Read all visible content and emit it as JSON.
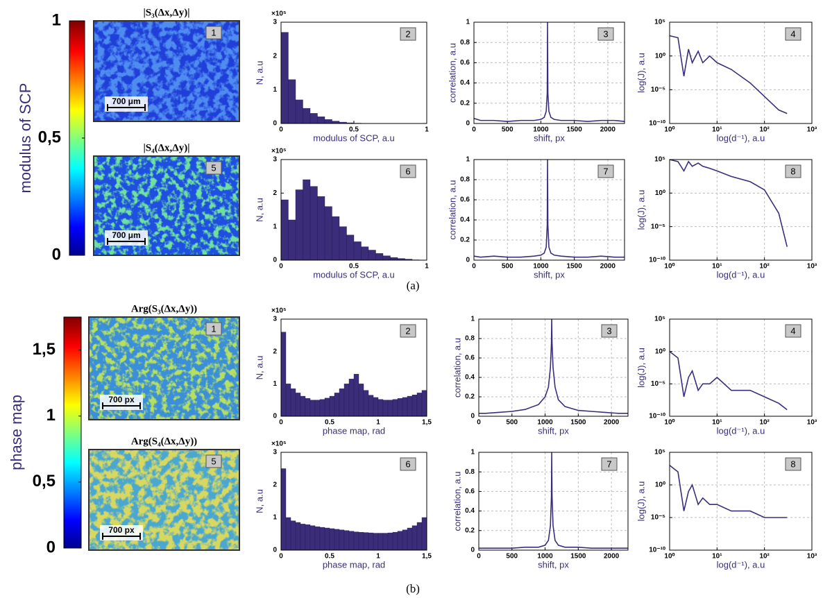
{
  "chart_data": [
    {
      "type": "colorbar",
      "label": "modulus of SCP",
      "colormap": "jet",
      "ylim": [
        0,
        1
      ],
      "yticks": [
        0,
        {
          "value": 0.5,
          "label": "0,5"
        },
        1
      ]
    },
    {
      "type": "image",
      "title": "|S₃(Δx,Δy)|",
      "label": "1",
      "scale_bar": "700 μm",
      "color": "#1f3fd8",
      "speckle_color": "#4f8cf0"
    },
    {
      "type": "image",
      "title": "|S₄(Δx,Δy)|",
      "label": "5",
      "scale_bar": "700 μm",
      "color": "#1e4fe0",
      "speckle_color": "#6fe0a0"
    },
    {
      "type": "histogram",
      "label": "2",
      "xlabel": "modulus of SCP, a.u",
      "ylabel": "N, a.u",
      "multiplier": "×10⁵",
      "color": "#3b2d7a",
      "bins": [
        0,
        0.05,
        0.1,
        0.15,
        0.2,
        0.25,
        0.3,
        0.35,
        0.4,
        0.45,
        0.5,
        0.55,
        0.6,
        0.65,
        0.7,
        0.75,
        0.8,
        0.85,
        0.9,
        0.95,
        1
      ],
      "values": [
        2.7,
        1.3,
        0.7,
        0.45,
        0.3,
        0.2,
        0.12,
        0.07,
        0.04,
        0.02,
        0.01,
        0.005,
        0,
        0,
        0,
        0,
        0,
        0,
        0,
        0
      ],
      "xlim": [
        0,
        1
      ],
      "ylim": [
        0,
        3
      ],
      "xticks": [
        0,
        0.5,
        1
      ],
      "yticks": [
        0,
        1,
        2,
        3
      ],
      "grid": false
    },
    {
      "type": "line",
      "label": "3",
      "xlabel": "shift, px",
      "ylabel": "correlation, a.u",
      "color": "#3b2d7a",
      "x": [
        0,
        100,
        300,
        500,
        700,
        900,
        1000,
        1050,
        1080,
        1095,
        1100,
        1105,
        1120,
        1150,
        1200,
        1300,
        1500,
        1700,
        1900,
        2100,
        2250
      ],
      "values": [
        0.05,
        0.03,
        0.03,
        0.02,
        0.03,
        0.03,
        0.04,
        0.06,
        0.12,
        0.3,
        1,
        0.3,
        0.12,
        0.06,
        0.04,
        0.03,
        0.03,
        0.02,
        0.03,
        0.03,
        0.02
      ],
      "xlim": [
        0,
        2250
      ],
      "ylim": [
        0,
        1
      ],
      "xticks": [
        0,
        500,
        1000,
        1500,
        2000
      ],
      "yticks": [
        0,
        0.2,
        0.4,
        0.6,
        0.8,
        1
      ],
      "grid": true
    },
    {
      "type": "line",
      "log": true,
      "label": "4",
      "xlabel": "log(d⁻¹), a.u",
      "ylabel": "log(J), a.u",
      "color": "#3b2d7a",
      "x": [
        1,
        1.5,
        2,
        2.5,
        3,
        4,
        5,
        7,
        10,
        20,
        50,
        100,
        200,
        300
      ],
      "values": [
        1000,
        500,
        0.001,
        10,
        0.1,
        5,
        0.1,
        1,
        0.1,
        0.01,
        0.0001,
        1e-06,
        1e-08,
        3e-09
      ],
      "xlim": [
        1,
        1000
      ],
      "ylim": [
        1e-10,
        100000
      ],
      "xticks": [
        {
          "value": 1,
          "label": "10⁰"
        },
        {
          "value": 10,
          "label": "10¹"
        },
        {
          "value": 100,
          "label": "10²"
        },
        {
          "value": 1000,
          "label": "10³"
        }
      ],
      "yticks": [
        {
          "value": 1e-10,
          "label": "10⁻¹⁰"
        },
        {
          "value": 1e-05,
          "label": "10⁻⁵"
        },
        {
          "value": 1,
          "label": "10⁰"
        },
        {
          "value": 100000,
          "label": "10⁵"
        }
      ],
      "grid": true
    },
    {
      "type": "histogram",
      "label": "6",
      "xlabel": "modulus of SCP, a.u",
      "ylabel": "N, a.u",
      "multiplier": "×10⁵",
      "color": "#3b2d7a",
      "bins": [
        0,
        0.05,
        0.1,
        0.15,
        0.2,
        0.25,
        0.3,
        0.35,
        0.4,
        0.45,
        0.5,
        0.55,
        0.6,
        0.65,
        0.7,
        0.75,
        0.8,
        0.85,
        0.9,
        0.95,
        1
      ],
      "values": [
        1.8,
        1.2,
        2.1,
        2.4,
        2.2,
        1.9,
        1.6,
        1.3,
        1.0,
        0.75,
        0.55,
        0.4,
        0.3,
        0.2,
        0.13,
        0.08,
        0.05,
        0.03,
        0.01,
        0.005
      ],
      "xlim": [
        0,
        1
      ],
      "ylim": [
        0,
        3
      ],
      "xticks": [
        0,
        0.5,
        1
      ],
      "yticks": [
        0,
        1,
        2,
        3
      ],
      "grid": false
    },
    {
      "type": "line",
      "label": "7",
      "xlabel": "shift, px",
      "ylabel": "correlation, a.u",
      "color": "#3b2d7a",
      "x": [
        0,
        100,
        300,
        500,
        700,
        900,
        1000,
        1050,
        1080,
        1095,
        1100,
        1105,
        1120,
        1150,
        1200,
        1300,
        1500,
        1700,
        1900,
        2100,
        2250
      ],
      "values": [
        0.04,
        0.03,
        0.04,
        0.03,
        0.03,
        0.04,
        0.05,
        0.07,
        0.13,
        0.35,
        1,
        0.35,
        0.13,
        0.07,
        0.05,
        0.04,
        0.03,
        0.03,
        0.04,
        0.03,
        0.03
      ],
      "xlim": [
        0,
        2250
      ],
      "ylim": [
        0,
        1
      ],
      "xticks": [
        0,
        500,
        1000,
        1500,
        2000
      ],
      "yticks": [
        0,
        0.2,
        0.4,
        0.6,
        0.8,
        1
      ],
      "grid": true
    },
    {
      "type": "line",
      "log": true,
      "label": "8",
      "xlabel": "log(d⁻¹), a.u",
      "ylabel": "log(J), a.u",
      "color": "#3b2d7a",
      "x": [
        1,
        1.5,
        2,
        2.5,
        3,
        4,
        5,
        7,
        10,
        20,
        50,
        100,
        200,
        300
      ],
      "values": [
        100000,
        50000,
        2000,
        50000,
        10000,
        30000,
        10000,
        5000,
        2000,
        300,
        50,
        3,
        0.001,
        1e-08
      ],
      "xlim": [
        1,
        1000
      ],
      "ylim": [
        1e-10,
        100000
      ],
      "xticks": [
        {
          "value": 1,
          "label": "10⁰"
        },
        {
          "value": 10,
          "label": "10¹"
        },
        {
          "value": 100,
          "label": "10²"
        },
        {
          "value": 1000,
          "label": "10³"
        }
      ],
      "yticks": [
        {
          "value": 1e-10,
          "label": "10⁻¹⁰"
        },
        {
          "value": 1e-05,
          "label": "10⁻⁵"
        },
        {
          "value": 1,
          "label": "10⁰"
        },
        {
          "value": 100000,
          "label": "10⁵"
        }
      ],
      "grid": true
    },
    {
      "type": "colorbar",
      "label": "phase map",
      "colormap": "jet",
      "ylim": [
        0,
        1.75
      ],
      "yticks": [
        0,
        {
          "value": 0.5,
          "label": "0,5"
        },
        1,
        {
          "value": 1.5,
          "label": "1,5"
        }
      ]
    },
    {
      "type": "image",
      "title": "Arg(S₃(Δx,Δy))",
      "label": "1",
      "scale_bar": "700 px",
      "color": "#3a8fd8",
      "speckle_color": "#b8e060"
    },
    {
      "type": "image",
      "title": "Arg(S₄(Δx,Δy))",
      "label": "5",
      "scale_bar": "700 px",
      "color": "#4aa8d0",
      "speckle_color": "#d8d860"
    },
    {
      "type": "histogram",
      "label": "2",
      "xlabel": "phase map, rad",
      "ylabel": "N, a.u",
      "multiplier": "×10⁵",
      "color": "#3b2d7a",
      "bins": [
        0,
        0.05,
        0.1,
        0.15,
        0.2,
        0.25,
        0.3,
        0.35,
        0.4,
        0.45,
        0.5,
        0.55,
        0.6,
        0.65,
        0.7,
        0.75,
        0.8,
        0.85,
        0.9,
        0.95,
        1,
        1.05,
        1.1,
        1.15,
        1.2,
        1.25,
        1.3,
        1.35,
        1.4,
        1.45,
        1.5
      ],
      "values": [
        2.6,
        1.0,
        0.85,
        0.72,
        0.62,
        0.55,
        0.5,
        0.5,
        0.52,
        0.56,
        0.62,
        0.72,
        0.85,
        1.0,
        1.15,
        1.3,
        1.0,
        0.8,
        0.65,
        0.58,
        0.52,
        0.5,
        0.5,
        0.52,
        0.55,
        0.58,
        0.62,
        0.66,
        0.72,
        0.8
      ],
      "xlim": [
        0,
        1.5
      ],
      "ylim": [
        0,
        3
      ],
      "xticks": [
        0,
        0.5,
        1,
        {
          "value": 1.5,
          "label": "1,5"
        }
      ],
      "yticks": [
        0,
        1,
        2,
        3
      ],
      "grid": false
    },
    {
      "type": "line",
      "label": "3",
      "xlabel": "shift, px",
      "ylabel": "correlation, a.u",
      "color": "#3b2d7a",
      "x": [
        0,
        100,
        300,
        500,
        700,
        900,
        1000,
        1050,
        1080,
        1095,
        1100,
        1105,
        1120,
        1150,
        1200,
        1300,
        1500,
        1700,
        1900,
        2100,
        2250
      ],
      "values": [
        0.03,
        0.03,
        0.04,
        0.05,
        0.07,
        0.12,
        0.2,
        0.3,
        0.5,
        0.75,
        1,
        0.75,
        0.5,
        0.3,
        0.17,
        0.1,
        0.06,
        0.05,
        0.04,
        0.03,
        0.03
      ],
      "xlim": [
        0,
        2250
      ],
      "ylim": [
        0,
        1
      ],
      "xticks": [
        0,
        500,
        1000,
        1500,
        2000
      ],
      "yticks": [
        0,
        0.2,
        0.4,
        0.6,
        0.8,
        1
      ],
      "grid": true
    },
    {
      "type": "line",
      "log": true,
      "label": "4",
      "xlabel": "log(d⁻¹), a.u",
      "ylabel": "log(J), a.u",
      "color": "#3b2d7a",
      "x": [
        1,
        1.5,
        2,
        2.5,
        3,
        4,
        5,
        7,
        10,
        20,
        50,
        100,
        200,
        300
      ],
      "values": [
        1,
        0.1,
        1e-07,
        0.0001,
        0.001,
        1e-06,
        1e-05,
        1e-05,
        0.0001,
        1e-06,
        1e-06,
        1e-07,
        1e-08,
        1e-09
      ],
      "xlim": [
        1,
        1000
      ],
      "ylim": [
        1e-10,
        100000
      ],
      "xticks": [
        {
          "value": 1,
          "label": "10⁰"
        },
        {
          "value": 10,
          "label": "10¹"
        },
        {
          "value": 100,
          "label": "10²"
        },
        {
          "value": 1000,
          "label": "10³"
        }
      ],
      "yticks": [
        {
          "value": 1e-10,
          "label": "10⁻¹⁰"
        },
        {
          "value": 1e-05,
          "label": "10⁻⁵"
        },
        {
          "value": 1,
          "label": "10⁰"
        },
        {
          "value": 100000,
          "label": "10⁵"
        }
      ],
      "grid": true
    },
    {
      "type": "histogram",
      "label": "6",
      "xlabel": "phase map, rad",
      "ylabel": "N, a.u",
      "multiplier": "×10⁵",
      "color": "#3b2d7a",
      "bins": [
        0,
        0.05,
        0.1,
        0.15,
        0.2,
        0.25,
        0.3,
        0.35,
        0.4,
        0.45,
        0.5,
        0.55,
        0.6,
        0.65,
        0.7,
        0.75,
        0.8,
        0.85,
        0.9,
        0.95,
        1,
        1.05,
        1.1,
        1.15,
        1.2,
        1.25,
        1.3,
        1.35,
        1.4,
        1.45,
        1.5
      ],
      "values": [
        2.5,
        1.0,
        0.9,
        0.85,
        0.8,
        0.78,
        0.75,
        0.72,
        0.7,
        0.68,
        0.66,
        0.64,
        0.62,
        0.6,
        0.58,
        0.56,
        0.55,
        0.54,
        0.53,
        0.52,
        0.52,
        0.52,
        0.53,
        0.55,
        0.58,
        0.62,
        0.68,
        0.75,
        0.85,
        1.0
      ],
      "xlim": [
        0,
        1.5
      ],
      "ylim": [
        0,
        3
      ],
      "xticks": [
        0,
        0.5,
        1,
        {
          "value": 1.5,
          "label": "1,5"
        }
      ],
      "yticks": [
        0,
        1,
        2,
        3
      ],
      "grid": false
    },
    {
      "type": "line",
      "label": "7",
      "xlabel": "shift, px",
      "ylabel": "correlation, a.u",
      "color": "#3b2d7a",
      "x": [
        0,
        100,
        300,
        500,
        700,
        900,
        1000,
        1050,
        1080,
        1095,
        1100,
        1105,
        1120,
        1150,
        1200,
        1300,
        1500,
        1700,
        1900,
        2100,
        2250
      ],
      "values": [
        0.02,
        0.02,
        0.02,
        0.02,
        0.03,
        0.03,
        0.05,
        0.1,
        0.25,
        0.55,
        1,
        0.55,
        0.25,
        0.1,
        0.05,
        0.03,
        0.03,
        0.02,
        0.02,
        0.02,
        0.02
      ],
      "xlim": [
        0,
        2250
      ],
      "ylim": [
        0,
        1
      ],
      "xticks": [
        0,
        500,
        1000,
        1500,
        2000
      ],
      "yticks": [
        0,
        0.2,
        0.4,
        0.6,
        0.8,
        1
      ],
      "grid": true
    },
    {
      "type": "line",
      "log": true,
      "label": "8",
      "xlabel": "log(d⁻¹), a.u",
      "ylabel": "log(J), a.u",
      "color": "#3b2d7a",
      "x": [
        1,
        1.5,
        2,
        2.5,
        3,
        4,
        5,
        7,
        10,
        20,
        50,
        100,
        200,
        300
      ],
      "values": [
        1000,
        100,
        0.0001,
        0.1,
        1,
        0.001,
        0.01,
        0.001,
        0.001,
        0.0001,
        0.0001,
        1e-05,
        1e-05,
        1e-05
      ],
      "xlim": [
        1,
        1000
      ],
      "ylim": [
        1e-10,
        100000
      ],
      "xticks": [
        {
          "value": 1,
          "label": "10⁰"
        },
        {
          "value": 10,
          "label": "10¹"
        },
        {
          "value": 100,
          "label": "10²"
        },
        {
          "value": 1000,
          "label": "10³"
        }
      ],
      "yticks": [
        {
          "value": 1e-10,
          "label": "10⁻¹⁰"
        },
        {
          "value": 1e-05,
          "label": "10⁻⁵"
        },
        {
          "value": 1,
          "label": "10⁰"
        },
        {
          "value": 100000,
          "label": "10⁵"
        }
      ],
      "grid": true
    }
  ],
  "captions": [
    "(a)",
    "(b)"
  ]
}
